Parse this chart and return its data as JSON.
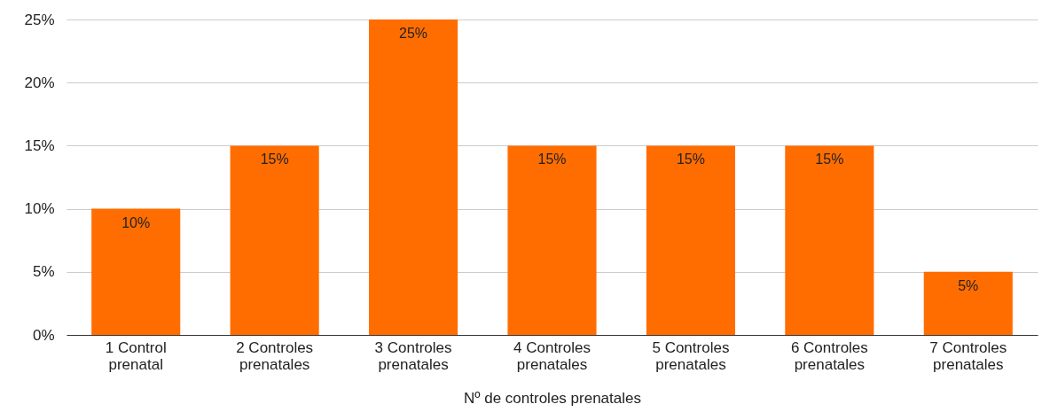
{
  "chart_data": {
    "type": "bar",
    "xlabel": "Nº de controles prenatales",
    "categories": [
      "1 Control prenatal",
      "2 Controles prenatales",
      "3 Controles prenatales",
      "4 Controles prenatales",
      "5 Controles prenatales",
      "6 Controles prenatales",
      "7 Controles prenatales"
    ],
    "values": [
      10,
      15,
      25,
      15,
      15,
      15,
      5
    ],
    "value_labels": [
      "10%",
      "15%",
      "25%",
      "15%",
      "15%",
      "15%",
      "5%"
    ],
    "color": "#ff6d01",
    "ylim": [
      0,
      25
    ],
    "yticks": [
      {
        "value": 0,
        "label": "0%"
      },
      {
        "value": 5,
        "label": "5%"
      },
      {
        "value": 10,
        "label": "10%"
      },
      {
        "value": 15,
        "label": "15%"
      },
      {
        "value": 20,
        "label": "20%"
      },
      {
        "value": 25,
        "label": "25%"
      }
    ],
    "grid": "y"
  }
}
